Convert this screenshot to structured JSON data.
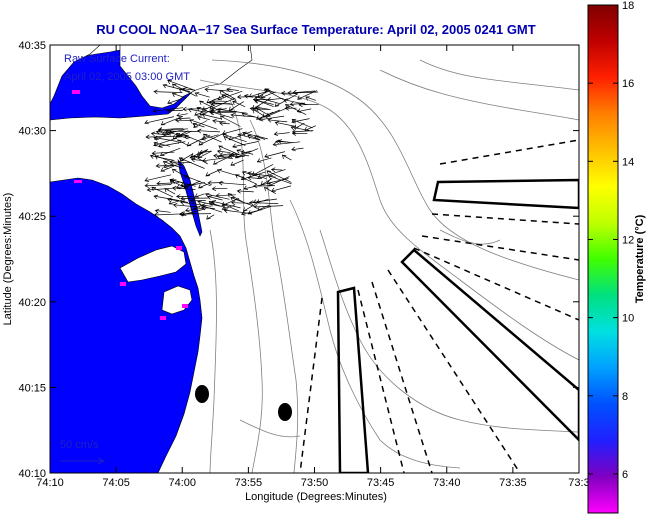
{
  "title": "RU COOL  NOAA−17  Sea Surface Temperature:  April 02, 2005 0241 GMT",
  "overlay": {
    "line1": "Raw Surface Current:",
    "line2": "April 02, 2005 03:00 GMT",
    "scale_label": "50 cm/s"
  },
  "axes": {
    "xlabel": "Longitude (Degrees:Minutes)",
    "ylabel": "Latitude (Degrees:Minutes)",
    "xticks": [
      "74:10",
      "74:05",
      "74:00",
      "73:55",
      "73:50",
      "73:45",
      "73:40",
      "73:35",
      "73:3"
    ],
    "yticks": [
      "40:35",
      "40:30",
      "40:25",
      "40:20",
      "40:15",
      "40:10"
    ]
  },
  "colorbar": {
    "label": "Temperature (°C)",
    "ticks": [
      "18",
      "16",
      "14",
      "12",
      "10",
      "8",
      "6"
    ],
    "min": 5,
    "max": 18,
    "colors": [
      "#ff00ff",
      "#8000c0",
      "#2020ff",
      "#0050ff",
      "#00a0ff",
      "#00e0e0",
      "#00e080",
      "#40ff00",
      "#c0ff00",
      "#ffff00",
      "#ffc000",
      "#ff8000",
      "#ff2000",
      "#c00000",
      "#800000"
    ]
  },
  "colors": {
    "land": "#ffffff",
    "water": "#0000ff",
    "contour": "#808080",
    "title": "#0000b0"
  }
}
